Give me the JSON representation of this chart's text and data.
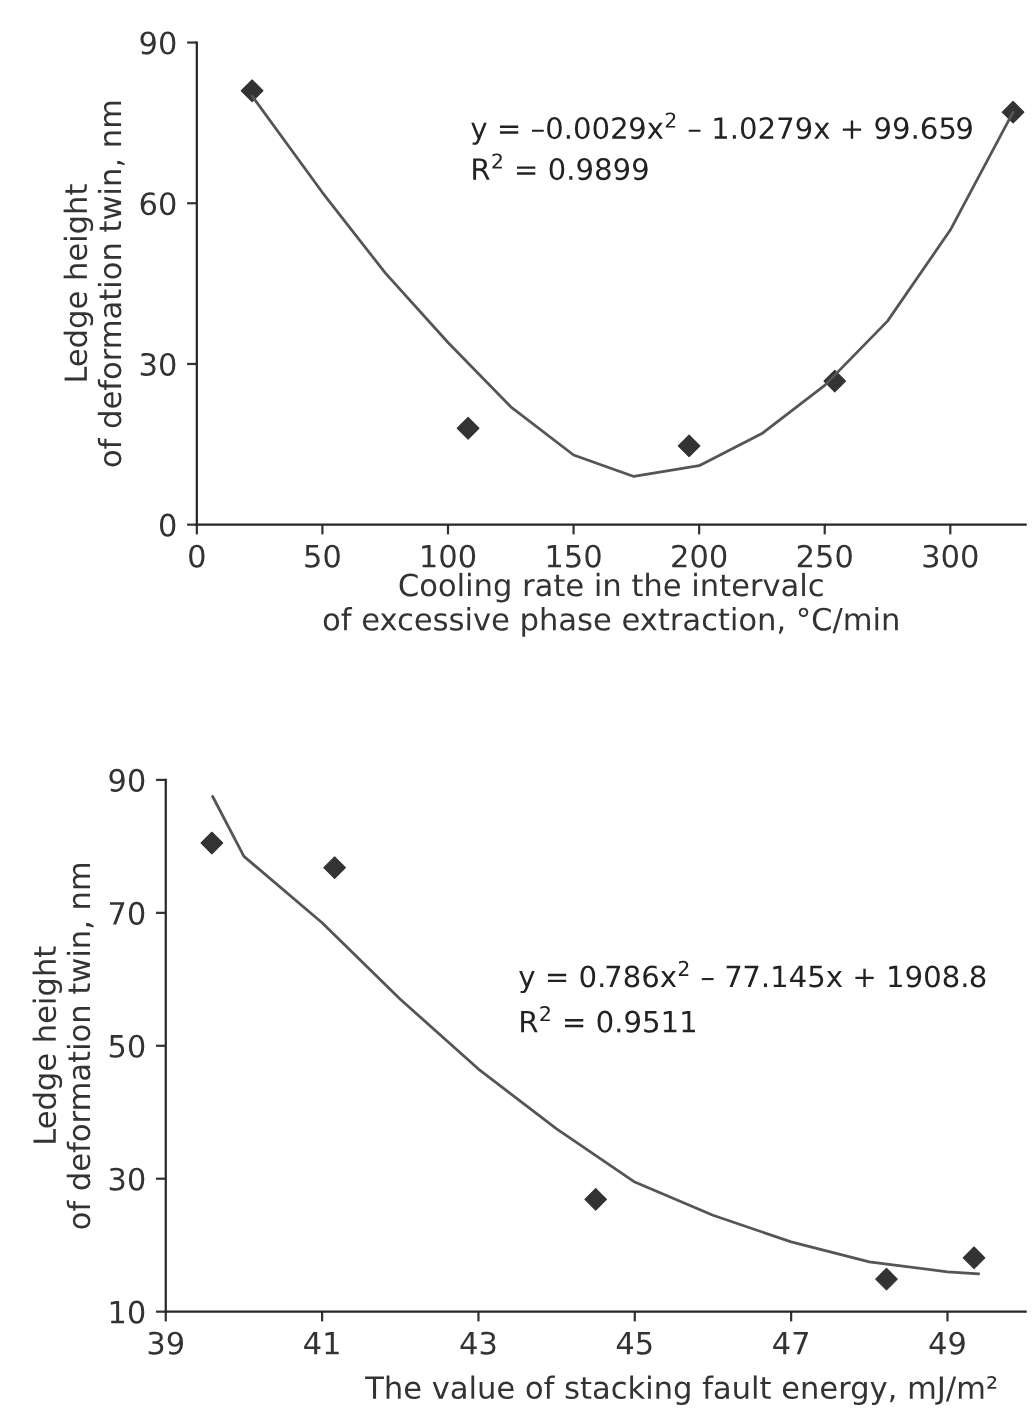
{
  "chart_data": [
    {
      "type": "scatter",
      "xlabel": "Cooling rate in the intervalc\nof excessive phase extraction, °C/min",
      "ylabel": "Ledge height\nof deformation twin, nm",
      "annotations": [
        "y = –0.0029x$^{2}$ – 1.0279x + 99.659",
        "R$^{2}$ = 0.9899"
      ],
      "series": [
        {
          "color": "#333333",
          "marker": "diamond",
          "x": [
            22,
            108,
            196,
            254,
            325
          ],
          "values": [
            81,
            18,
            14.7,
            26.8,
            77
          ]
        },
        {
          "type": "line",
          "color": "#555555",
          "marker": "none",
          "line_style": "solid",
          "x": [
            22,
            50,
            75,
            100,
            125,
            150,
            174,
            200,
            225,
            250,
            275,
            300,
            325
          ],
          "values": [
            80,
            62,
            47,
            34,
            22,
            13,
            9,
            11,
            17,
            26,
            38,
            55,
            77
          ]
        }
      ],
      "xlim": [
        0,
        330
      ],
      "xticks": [
        0,
        50,
        100,
        150,
        200,
        250,
        300
      ],
      "ylim": [
        0,
        90
      ],
      "yticks": [
        0,
        30,
        60,
        90
      ],
      "grid": false,
      "legend": false
    },
    {
      "type": "scatter",
      "xlabel": "The value of stacking fault energy, mJ/m²",
      "ylabel": "Ledge height\nof deformation twin, nm",
      "annotations": [
        "y = 0.786x$^{2}$ – 77.145x + 1908.8",
        "R$^{2}$ = 0.9511"
      ],
      "series": [
        {
          "color": "#333333",
          "marker": "diamond",
          "x": [
            39.59,
            41.16,
            44.5,
            48.22,
            49.34
          ],
          "values": [
            80.5,
            76.8,
            26.9,
            14.9,
            18.1
          ]
        },
        {
          "type": "line",
          "color": "#555555",
          "marker": "none",
          "line_style": "solid",
          "x": [
            39.6,
            40,
            41,
            42,
            43,
            44,
            45,
            46,
            47,
            48,
            49,
            49.4
          ],
          "values": [
            87.5,
            78.5,
            68.5,
            57,
            46.5,
            37.5,
            29.5,
            24.5,
            20.5,
            17.5,
            16,
            15.7
          ]
        }
      ],
      "xlim": [
        39,
        50
      ],
      "xticks": [
        39,
        41,
        43,
        45,
        47,
        49
      ],
      "ylim": [
        10,
        90
      ],
      "yticks": [
        10,
        30,
        50,
        70,
        90
      ],
      "grid": false,
      "legend": false
    }
  ]
}
